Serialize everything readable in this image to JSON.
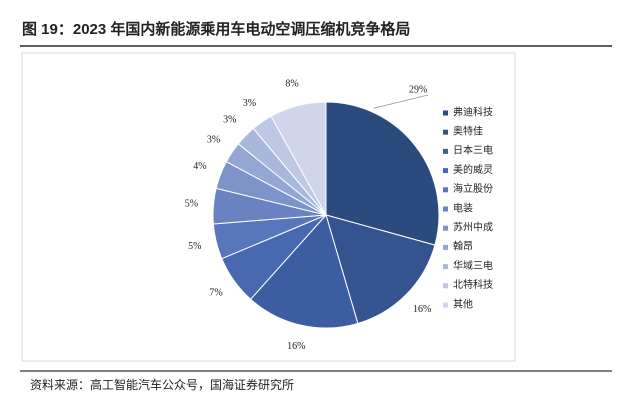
{
  "chart_data": {
    "type": "pie",
    "title": "图 19：2023 年国内新能源乘用车电动空调压缩机竞争格局",
    "categories": [
      "弗迪科技",
      "奥特佳",
      "日本三电",
      "美的威灵",
      "海立股份",
      "电装",
      "苏州中成",
      "翰昂",
      "华域三电",
      "北特科技",
      "其他"
    ],
    "values": [
      29,
      16,
      16,
      7,
      5,
      5,
      4,
      3,
      3,
      3,
      8
    ],
    "value_labels": [
      "29%",
      "16%",
      "16%",
      "7%",
      "5%",
      "5%",
      "4%",
      "3%",
      "3%",
      "3%",
      "8%"
    ],
    "colors": [
      "#2b4a7e",
      "#34538f",
      "#3d5da2",
      "#4868b0",
      "#5876bb",
      "#6983c2",
      "#7d94ca",
      "#93a6d4",
      "#a8b8dd",
      "#bdc8e5",
      "#d0d5ec"
    ],
    "legend": "right",
    "source": "资料来源：高工智能汽车公众号，国海证券研究所"
  }
}
